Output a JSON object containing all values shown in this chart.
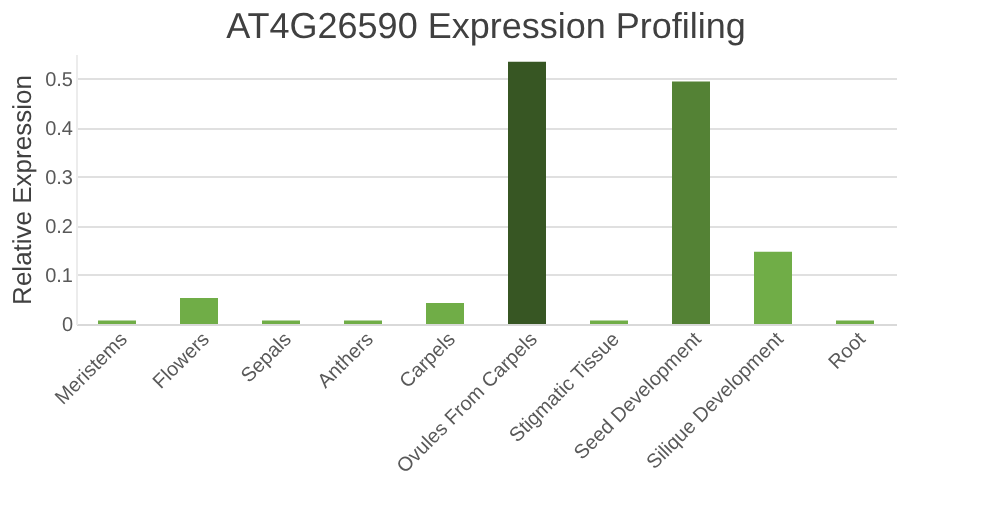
{
  "chart_data": {
    "type": "bar",
    "title": "AT4G26590 Expression Profiling",
    "ylabel": "Relative Expression",
    "categories": [
      "Meristems",
      "Flowers",
      "Sepals",
      "Anthers",
      "Carpels",
      "Ovules From Carpels",
      "Stigmatic Tissue",
      "Seed Development",
      "Silique Development",
      "Root"
    ],
    "values": [
      0.007,
      0.053,
      0.007,
      0.007,
      0.043,
      0.534,
      0.007,
      0.494,
      0.147,
      0.007
    ],
    "colors": [
      "#70ad47",
      "#70ad47",
      "#70ad47",
      "#70ad47",
      "#70ad47",
      "#375623",
      "#70ad47",
      "#548235",
      "#70ad47",
      "#70ad47"
    ],
    "ylim": [
      0,
      0.55
    ],
    "yticks": [
      0,
      0.1,
      0.2,
      0.3,
      0.4,
      0.5
    ],
    "grid": "y"
  }
}
